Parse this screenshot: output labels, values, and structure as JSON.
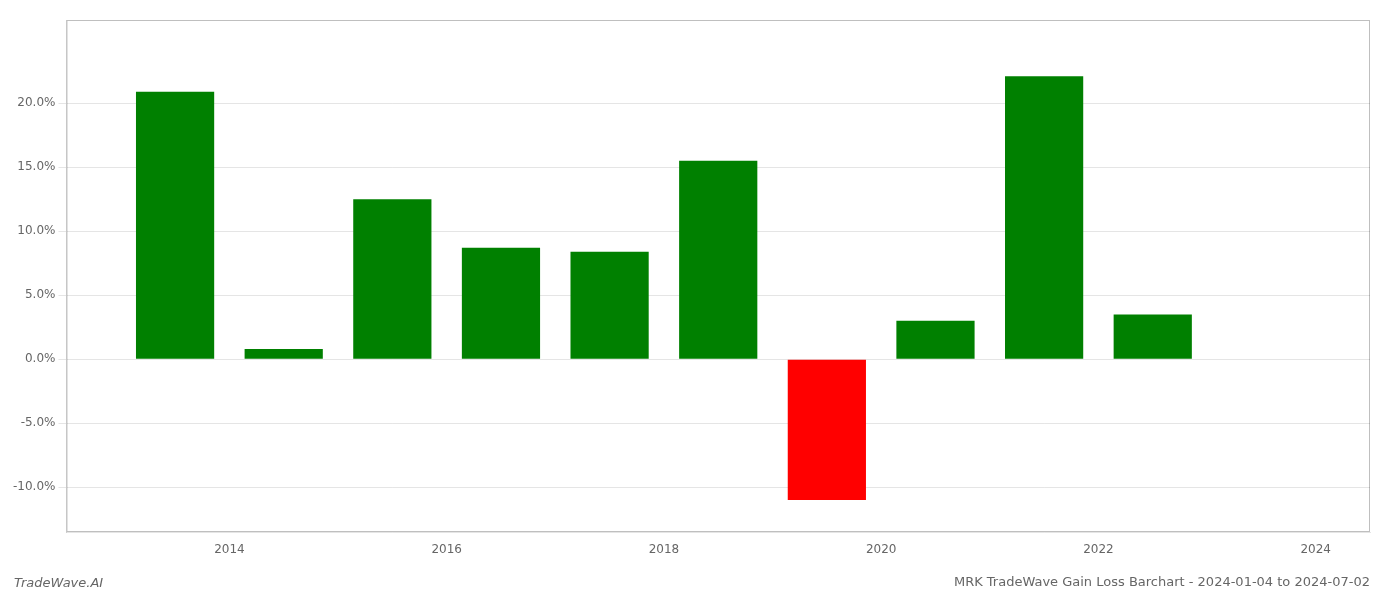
{
  "chart_data": {
    "type": "bar",
    "title": "MRK TradeWave Gain Loss Barchart - 2024-01-04 to 2024-07-02",
    "annotations": [
      "TradeWave.AI"
    ],
    "x": [
      2013.5,
      2014.5,
      2015.5,
      2016.5,
      2017.5,
      2018.5,
      2019.5,
      2020.5,
      2021.5,
      2022.5
    ],
    "values": [
      0.209,
      0.008,
      0.125,
      0.087,
      0.084,
      0.155,
      -0.11,
      0.03,
      0.221,
      0.035
    ],
    "colors": [
      "#008000",
      "#008000",
      "#008000",
      "#008000",
      "#008000",
      "#008000",
      "#ff0000",
      "#008000",
      "#008000",
      "#008000"
    ],
    "xlim": [
      2012.5,
      2024.5
    ],
    "xticks": [
      2014,
      2016,
      2018,
      2020,
      2022,
      2024
    ],
    "ylim": [
      -0.135,
      0.265
    ],
    "yticks": [
      {
        "value": -0.1,
        "label": "-10.0%"
      },
      {
        "value": -0.05,
        "label": "-5.0%"
      },
      {
        "value": 0.0,
        "label": "0.0%"
      },
      {
        "value": 0.05,
        "label": "5.0%"
      },
      {
        "value": 0.1,
        "label": "10.0%"
      },
      {
        "value": 0.15,
        "label": "15.0%"
      },
      {
        "value": 0.2,
        "label": "20.0%"
      }
    ],
    "grid": true
  }
}
